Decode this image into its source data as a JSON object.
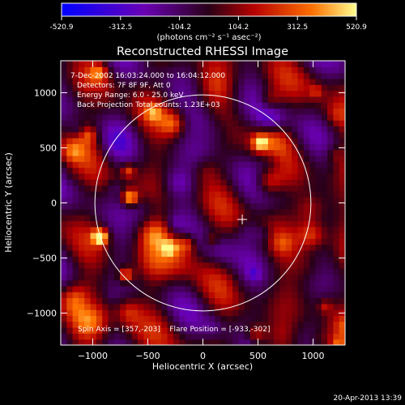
{
  "chart_data": {
    "type": "heatmap",
    "title": "Reconstructed RHESSI Image",
    "xlabel": "Heliocentric X (arcsec)",
    "ylabel": "Heliocentric Y (arcsec)",
    "xlim": [
      -1290,
      1290
    ],
    "ylim": [
      -1290,
      1290
    ],
    "xticks": [
      -1000,
      -500,
      0,
      500,
      1000
    ],
    "yticks": [
      -1000,
      -500,
      0,
      500,
      1000
    ],
    "colorbar": {
      "unit_label": "(photons cm⁻² s⁻¹ asec⁻²)",
      "min": -520.9,
      "max": 520.9,
      "tick_labels": [
        "-520.9",
        "-312.5",
        "-104.2",
        "104.2",
        "312.5",
        "520.9"
      ],
      "colors": [
        "#0000ff",
        "#6a00b4",
        "#2a0018",
        "#b40000",
        "#ff7000",
        "#ffff90"
      ]
    },
    "annotations": [
      "7-Dec-2002 16:03:24.000 to 16:04:12.000",
      "Detectors: 7F 8F 9F, Att 0",
      "Energy Range: 6.0 - 25.0 keV",
      "Back Projection    Total counts: 1.23E+03"
    ],
    "footer": "Spin Axis = [357,-203]    Flare Position = [-933,-302]",
    "spin_axis": [
      357,
      -203
    ],
    "flare_position": [
      -933,
      -302
    ],
    "solar_limb": {
      "center": [
        0,
        0
      ],
      "radius": 980
    },
    "marker_position": [
      357,
      -150
    ],
    "bright_sources": [
      {
        "x": -933,
        "y": -302,
        "value": 520.9
      },
      {
        "x": -660,
        "y": 50,
        "value": 420
      },
      {
        "x": -700,
        "y": -650,
        "value": 330
      },
      {
        "x": -300,
        "y": -400,
        "value": 300
      },
      {
        "x": 520,
        "y": 550,
        "value": 300
      }
    ]
  },
  "timestamp": "20-Apr-2013 13:39"
}
